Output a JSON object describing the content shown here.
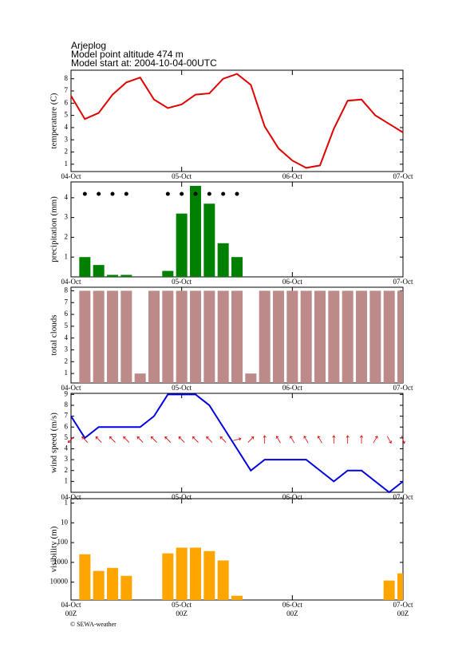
{
  "header": {
    "station": "Arjeplog",
    "altitude": "Model point altitude  474 m",
    "start": "Model start at: 2004-10-04-00UTC"
  },
  "footer": {
    "hour_labels": [
      "00Z",
      "00Z",
      "00Z",
      "00Z"
    ],
    "credit": "© SEWA-weather"
  },
  "chart_data": [
    {
      "type": "line",
      "ylabel": "temperature (C)",
      "color": "#e00000",
      "x": [
        0,
        3,
        6,
        9,
        12,
        15,
        18,
        21,
        24,
        27,
        30,
        33,
        36,
        39,
        42,
        45,
        48,
        51,
        54,
        57,
        60,
        63,
        66,
        69,
        72
      ],
      "values": [
        6.6,
        4.7,
        5.2,
        6.7,
        7.7,
        8.1,
        6.3,
        5.6,
        5.9,
        6.7,
        6.8,
        8.0,
        8.4,
        7.5,
        4.1,
        2.3,
        1.3,
        0.7,
        0.9,
        3.9,
        6.2,
        6.3,
        5.0,
        4.3,
        3.6
      ],
      "xlim": [
        0,
        72
      ],
      "xticks": [
        {
          "value": 0,
          "label": "04-Oct"
        },
        {
          "value": 24,
          "label": "05-Oct"
        },
        {
          "value": 48,
          "label": "06-Oct"
        },
        {
          "value": 72,
          "label": "07-Oct"
        }
      ],
      "ylim": [
        0.4,
        8.7
      ],
      "yticks": [
        1,
        2,
        3,
        4,
        5,
        6,
        7,
        8
      ]
    },
    {
      "type": "bar",
      "ylabel": "precipitation (mm)",
      "color": "#008000",
      "x": [
        3,
        6,
        9,
        12,
        15,
        18,
        21,
        24,
        27,
        30,
        33,
        36,
        39,
        42,
        45,
        48,
        51,
        54,
        57,
        60,
        63,
        66,
        69,
        72
      ],
      "values": [
        1.0,
        0.6,
        0.1,
        0.1,
        0,
        0,
        0.3,
        3.2,
        4.6,
        3.7,
        1.7,
        1.0,
        0,
        0,
        0,
        0,
        0,
        0,
        0,
        0,
        0,
        0,
        0,
        0
      ],
      "symbol_x": [
        3,
        6,
        9,
        12,
        21,
        24,
        27,
        30,
        33,
        36
      ],
      "xlim": [
        0,
        72
      ],
      "xticks": [
        {
          "value": 0,
          "label": "04-Oct"
        },
        {
          "value": 24,
          "label": "05-Oct"
        },
        {
          "value": 48,
          "label": "06-Oct"
        },
        {
          "value": 72,
          "label": "07-Oct"
        }
      ],
      "ylim": [
        0,
        4.8
      ],
      "yticks": [
        1,
        2,
        3,
        4
      ]
    },
    {
      "type": "bar",
      "ylabel": "total clouds",
      "color": "#bc8a88",
      "x": [
        3,
        6,
        9,
        12,
        15,
        18,
        21,
        24,
        27,
        30,
        33,
        36,
        39,
        42,
        45,
        48,
        51,
        54,
        57,
        60,
        63,
        66,
        69,
        72
      ],
      "values": [
        8,
        8,
        8,
        8,
        1,
        8,
        8,
        8,
        8,
        8,
        8,
        8,
        1,
        8,
        8,
        8,
        8,
        8,
        8,
        8,
        8,
        8,
        8,
        8
      ],
      "xlim": [
        0,
        72
      ],
      "xticks": [
        {
          "value": 0,
          "label": "04-Oct"
        },
        {
          "value": 24,
          "label": "05-Oct"
        },
        {
          "value": 48,
          "label": "06-Oct"
        },
        {
          "value": 72,
          "label": "07-Oct"
        }
      ],
      "ylim": [
        0.2,
        8.3
      ],
      "yticks": [
        1,
        2,
        3,
        4,
        5,
        6,
        7,
        8
      ]
    },
    {
      "type": "line",
      "ylabel": "wind speed (m/s)",
      "color": "#0000e0",
      "x": [
        0,
        3,
        6,
        9,
        12,
        15,
        18,
        21,
        24,
        27,
        30,
        33,
        36,
        39,
        42,
        45,
        48,
        51,
        54,
        57,
        60,
        63,
        66,
        69,
        72
      ],
      "values": [
        7,
        5,
        6,
        6,
        6,
        6,
        7,
        9,
        9,
        9,
        8,
        6,
        4,
        2,
        3,
        3,
        3,
        3,
        2,
        1,
        2,
        2,
        1,
        0,
        1
      ],
      "direction": [
        225,
        315,
        315,
        315,
        315,
        315,
        315,
        315,
        315,
        315,
        315,
        315,
        75,
        45,
        0,
        330,
        330,
        330,
        330,
        0,
        0,
        0,
        30,
        150,
        160
      ],
      "arrow_color": "#e00000",
      "xlim": [
        0,
        72
      ],
      "xticks": [
        {
          "value": 0,
          "label": "04-Oct"
        },
        {
          "value": 24,
          "label": "05-Oct"
        },
        {
          "value": 48,
          "label": "06-Oct"
        },
        {
          "value": 72,
          "label": "07-Oct"
        }
      ],
      "ylim": [
        0,
        9.1
      ],
      "yticks": [
        1,
        2,
        3,
        4,
        5,
        6,
        7,
        8,
        9
      ]
    },
    {
      "type": "bar",
      "ylabel": "visibility (m)",
      "color": "#ffa500",
      "log_scale": true,
      "inverted": true,
      "x": [
        3,
        6,
        9,
        12,
        15,
        18,
        21,
        24,
        27,
        30,
        33,
        36,
        39,
        42,
        45,
        48,
        51,
        54,
        57,
        60,
        63,
        66,
        69,
        72
      ],
      "values": [
        390,
        2700,
        1900,
        4800,
        null,
        null,
        350,
        180,
        180,
        270,
        800,
        49000,
        null,
        null,
        null,
        null,
        null,
        null,
        null,
        null,
        null,
        null,
        8300,
        3600
      ],
      "xlim": [
        0,
        72
      ],
      "xticks": [
        {
          "value": 0,
          "label": "04-Oct"
        },
        {
          "value": 24,
          "label": "05-Oct"
        },
        {
          "value": 48,
          "label": "06-Oct"
        },
        {
          "value": 72,
          "label": "07-Oct"
        }
      ],
      "ylim": [
        0.6,
        80000
      ],
      "yticks": [
        1,
        10,
        100,
        1000,
        10000
      ]
    }
  ]
}
